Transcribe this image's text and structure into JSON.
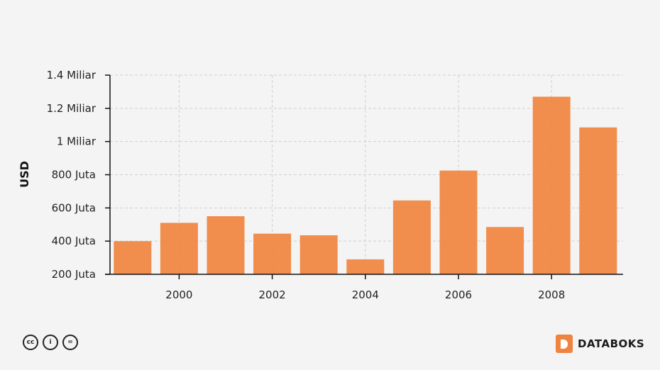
{
  "chart_data": {
    "type": "bar",
    "categories": [
      "1999",
      "2000",
      "2001",
      "2002",
      "2003",
      "2004",
      "2005",
      "2006",
      "2007",
      "2008",
      "2009"
    ],
    "values": [
      400000000,
      510000000,
      550000000,
      445000000,
      435000000,
      290000000,
      645000000,
      825000000,
      485000000,
      1270000000,
      1085000000
    ],
    "xlabel": "",
    "ylabel": "USD",
    "ylim": [
      200000000,
      1400000000
    ],
    "y_ticks": [
      200000000,
      400000000,
      600000000,
      800000000,
      1000000000,
      1200000000,
      1400000000
    ],
    "y_tick_labels": [
      "200 Juta",
      "400 Juta",
      "600 Juta",
      "800 Juta",
      "1 Miliar",
      "1.2 Miliar",
      "1.4 Miliar"
    ],
    "x_ticks": [
      "2000",
      "2002",
      "2004",
      "2006",
      "2008"
    ],
    "grid": true,
    "bar_color": "#f0843f"
  },
  "footer": {
    "license_icons": [
      "cc-icon",
      "by-icon",
      "nd-icon"
    ],
    "license_glyphs": [
      "cc",
      "i",
      "="
    ],
    "brand_name": "DATABOKS",
    "brand_color": "#f0833f"
  }
}
